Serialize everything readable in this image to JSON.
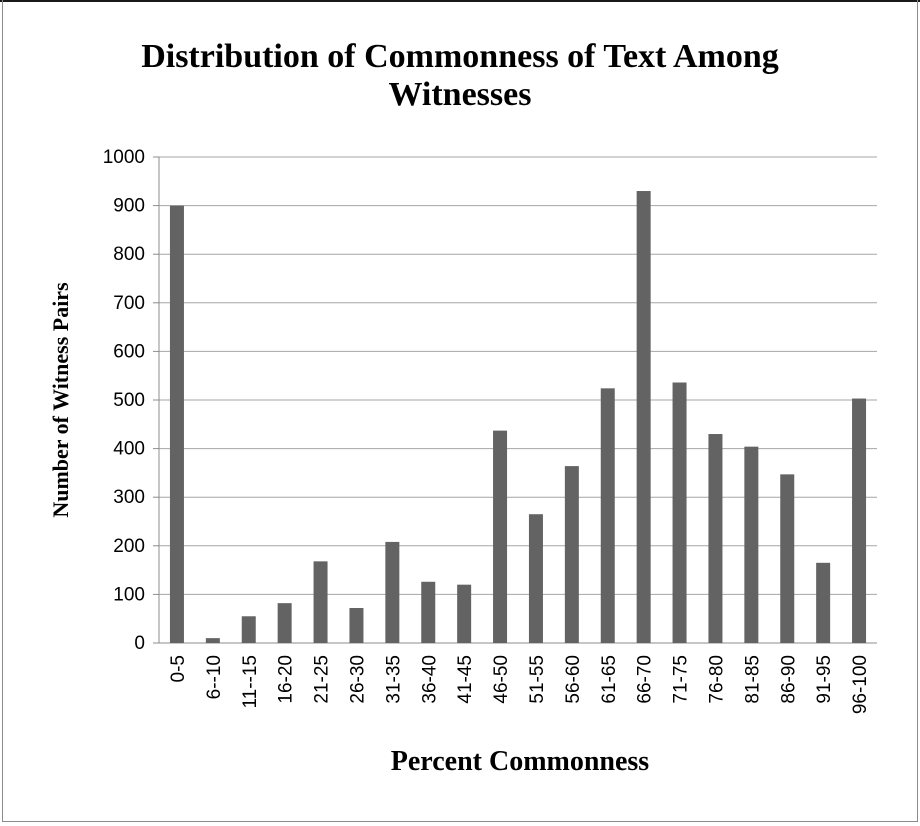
{
  "chart_data": {
    "type": "bar",
    "title": "Distribution of Commonness of Text Among Witnesses",
    "xlabel": "Percent Commonness",
    "ylabel": "Number of Witness Pairs",
    "categories": [
      "0-5",
      "6--10",
      "11--15",
      "16-20",
      "21-25",
      "26-30",
      "31-35",
      "36-40",
      "41-45",
      "46-50",
      "51-55",
      "56-60",
      "61-65",
      "66-70",
      "71-75",
      "76-80",
      "81-85",
      "86-90",
      "91-95",
      "96-100"
    ],
    "values": [
      900,
      10,
      55,
      82,
      168,
      72,
      208,
      126,
      120,
      437,
      265,
      364,
      524,
      930,
      536,
      430,
      404,
      347,
      165,
      503
    ],
    "ylim": [
      0,
      1000
    ],
    "yticks": [
      "0",
      "100",
      "200",
      "300",
      "400",
      "500",
      "600",
      "700",
      "800",
      "900",
      "1000"
    ],
    "grid": true,
    "legend": "none",
    "bar_color": "#636363"
  }
}
